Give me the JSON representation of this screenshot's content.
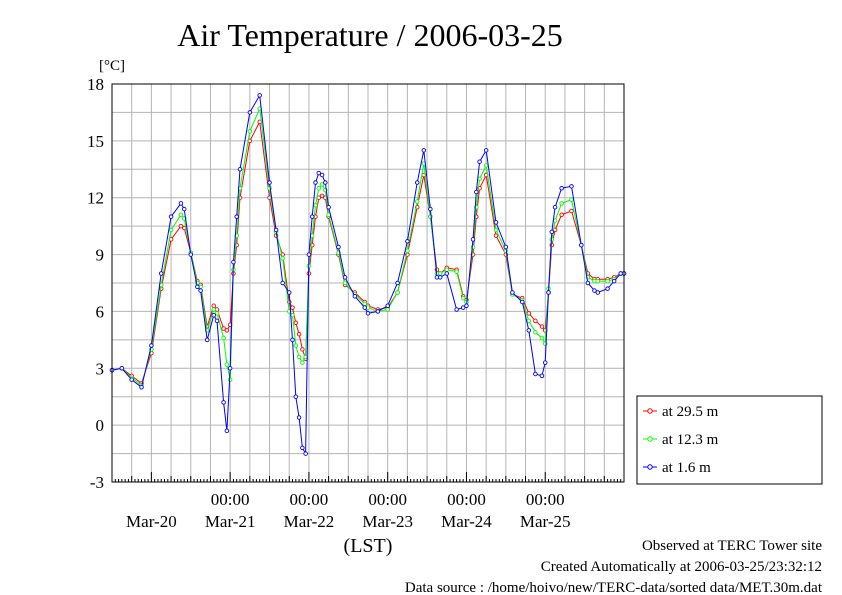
{
  "chart_data": {
    "type": "line",
    "title": "Air Temperature / 2006-03-25",
    "ylabel": "[°C]",
    "xlabel": "(LST)",
    "ylim": [
      -3,
      18
    ],
    "yticks": [
      -3,
      0,
      3,
      6,
      9,
      12,
      15,
      18
    ],
    "xlim": [
      "2006-03-19 12:00",
      "2006-03-26 00:00"
    ],
    "x_time_labels": [
      "00:00",
      "00:00",
      "00:00",
      "00:00",
      "00:00"
    ],
    "x_date_labels": [
      "Mar-20",
      "Mar-21",
      "Mar-22",
      "Mar-23",
      "Mar-24",
      "Mar-25"
    ],
    "grid": true,
    "legend_position": "right",
    "series_x": [
      "2006-03-19 12:00",
      "2006-03-19 15:00",
      "2006-03-19 18:00",
      "2006-03-19 21:00",
      "2006-03-20 00:00",
      "2006-03-20 03:00",
      "2006-03-20 06:00",
      "2006-03-20 09:00",
      "2006-03-20 10:00",
      "2006-03-20 12:00",
      "2006-03-20 14:00",
      "2006-03-20 15:00",
      "2006-03-20 17:00",
      "2006-03-20 19:00",
      "2006-03-20 20:00",
      "2006-03-20 22:00",
      "2006-03-20 23:00",
      "2006-03-21 00:00",
      "2006-03-21 01:00",
      "2006-03-21 02:00",
      "2006-03-21 03:00",
      "2006-03-21 06:00",
      "2006-03-21 09:00",
      "2006-03-21 12:00",
      "2006-03-21 14:00",
      "2006-03-21 16:00",
      "2006-03-21 18:00",
      "2006-03-21 19:00",
      "2006-03-21 20:00",
      "2006-03-21 21:00",
      "2006-03-21 22:00",
      "2006-03-21 23:00",
      "2006-03-22 00:00",
      "2006-03-22 01:00",
      "2006-03-22 02:00",
      "2006-03-22 03:00",
      "2006-03-22 04:00",
      "2006-03-22 05:00",
      "2006-03-22 06:00",
      "2006-03-22 09:00",
      "2006-03-22 11:00",
      "2006-03-22 14:00",
      "2006-03-22 17:00",
      "2006-03-22 18:00",
      "2006-03-22 21:00",
      "2006-03-23 00:00",
      "2006-03-23 03:00",
      "2006-03-23 06:00",
      "2006-03-23 09:00",
      "2006-03-23 11:00",
      "2006-03-23 13:00",
      "2006-03-23 15:00",
      "2006-03-23 16:00",
      "2006-03-23 18:00",
      "2006-03-23 21:00",
      "2006-03-23 23:00",
      "2006-03-24 00:00",
      "2006-03-24 02:00",
      "2006-03-24 03:00",
      "2006-03-24 04:00",
      "2006-03-24 06:00",
      "2006-03-24 09:00",
      "2006-03-24 12:00",
      "2006-03-24 14:00",
      "2006-03-24 17:00",
      "2006-03-24 19:00",
      "2006-03-24 21:00",
      "2006-03-24 23:00",
      "2006-03-25 00:00",
      "2006-03-25 01:00",
      "2006-03-25 02:00",
      "2006-03-25 03:00",
      "2006-03-25 05:00",
      "2006-03-25 08:00",
      "2006-03-25 11:00",
      "2006-03-25 13:00",
      "2006-03-25 15:00",
      "2006-03-25 16:00",
      "2006-03-25 19:00",
      "2006-03-25 21:00",
      "2006-03-25 23:00",
      "2006-03-26 00:00"
    ],
    "series": [
      {
        "name": "at 29.5 m",
        "color": "#ff0000",
        "values": [
          2.9,
          3.0,
          2.6,
          2.2,
          3.8,
          7.2,
          9.8,
          10.5,
          10.4,
          9.1,
          7.6,
          7.4,
          5.2,
          6.3,
          6.1,
          5.1,
          5.0,
          5.3,
          8.0,
          9.5,
          12.0,
          15.0,
          16.0,
          12.0,
          10.0,
          9.0,
          6.5,
          6.2,
          5.4,
          4.8,
          4.0,
          3.5,
          8.0,
          9.5,
          11.0,
          12.0,
          12.1,
          12.0,
          11.0,
          9.0,
          7.4,
          7.0,
          6.5,
          6.3,
          6.1,
          6.2,
          7.0,
          9.0,
          11.5,
          13.2,
          11.0,
          8.2,
          8.0,
          8.3,
          8.2,
          6.8,
          6.6,
          9.0,
          11.0,
          12.5,
          13.2,
          10.0,
          9.0,
          6.9,
          6.7,
          5.9,
          5.5,
          5.2,
          5.0,
          7.0,
          9.5,
          10.3,
          11.1,
          11.3,
          9.5,
          8.0,
          7.7,
          7.7,
          7.7,
          7.8,
          8.0,
          8.0
        ]
      },
      {
        "name": "at 12.3 m",
        "color": "#00ff00",
        "values": [
          2.9,
          3.0,
          2.5,
          2.1,
          4.0,
          7.4,
          10.3,
          11.1,
          10.9,
          9.1,
          7.5,
          7.3,
          5.0,
          6.1,
          5.9,
          4.6,
          3.2,
          2.4,
          8.2,
          10.0,
          12.5,
          15.5,
          16.7,
          12.5,
          10.2,
          8.8,
          6.0,
          5.8,
          4.2,
          3.6,
          3.3,
          3.6,
          8.4,
          10.0,
          11.6,
          12.5,
          12.7,
          12.4,
          11.1,
          9.1,
          7.5,
          6.9,
          6.4,
          6.2,
          6.0,
          6.1,
          7.0,
          9.2,
          11.8,
          13.8,
          11.0,
          8.0,
          8.0,
          8.2,
          8.1,
          6.7,
          6.5,
          9.4,
          11.5,
          13.0,
          13.7,
          10.3,
          9.2,
          6.9,
          6.6,
          5.5,
          4.9,
          4.6,
          4.3,
          7.2,
          9.8,
          10.8,
          11.7,
          11.9,
          9.5,
          7.8,
          7.6,
          7.6,
          7.6,
          7.7,
          8.0,
          8.0
        ]
      },
      {
        "name": "at 1.6 m",
        "color": "#0000ff",
        "values": [
          2.9,
          3.0,
          2.4,
          2.0,
          4.2,
          8.0,
          11.0,
          11.7,
          11.4,
          9.0,
          7.3,
          7.1,
          4.5,
          5.8,
          5.5,
          1.2,
          -0.3,
          3.0,
          8.6,
          11.0,
          13.5,
          16.5,
          17.4,
          12.8,
          10.3,
          7.5,
          7.0,
          4.5,
          1.5,
          0.4,
          -1.2,
          -1.5,
          9.0,
          11.0,
          12.8,
          13.3,
          13.2,
          12.8,
          11.5,
          9.4,
          7.8,
          6.8,
          6.2,
          5.9,
          6.0,
          6.3,
          7.5,
          9.7,
          12.8,
          14.5,
          11.4,
          7.8,
          7.8,
          8.0,
          6.1,
          6.2,
          6.3,
          9.8,
          12.3,
          13.9,
          14.5,
          10.7,
          9.4,
          7.0,
          6.5,
          5.0,
          2.7,
          2.6,
          3.3,
          7.0,
          10.2,
          11.5,
          12.5,
          12.6,
          9.5,
          7.5,
          7.1,
          7.0,
          7.2,
          7.6,
          8.0,
          8.0
        ]
      }
    ]
  },
  "footer": {
    "observed": "Observed at TERC Tower site",
    "created": "Created Automatically at 2006-03-25/23:32:12",
    "source": "Data source : /home/hoivo/new/TERC-data/sorted  data/MET.30m.dat"
  }
}
